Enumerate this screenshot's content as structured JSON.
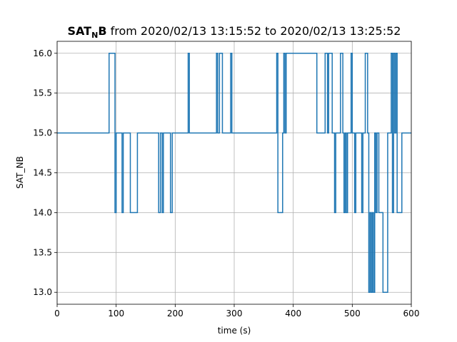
{
  "chart_data": {
    "type": "line",
    "step": "post",
    "title_main": "SAT",
    "title_subscript": "N",
    "title_bold_tail": "B",
    "title_rest": " from 2020/02/13 13:15:52 to 2020/02/13 13:25:52",
    "xlabel": "time (s)",
    "ylabel": "SAT_NB",
    "xlim": [
      0,
      600
    ],
    "ylim": [
      12.85,
      16.15
    ],
    "xticks": [
      0,
      100,
      200,
      300,
      400,
      500,
      600
    ],
    "yticks": [
      13.0,
      13.5,
      14.0,
      14.5,
      15.0,
      15.5,
      16.0
    ],
    "xtick_labels": [
      "0",
      "100",
      "200",
      "300",
      "400",
      "500",
      "600"
    ],
    "ytick_labels": [
      "13.0",
      "13.5",
      "14.0",
      "14.5",
      "15.0",
      "15.5",
      "16.0"
    ],
    "grid": true,
    "line_color": "#1f77b4",
    "series": [
      {
        "x": [
          0,
          88,
          98,
          100,
          110,
          112,
          124,
          136,
          172,
          175,
          178,
          180,
          192,
          195,
          222,
          224,
          226,
          270,
          272,
          275,
          280,
          294,
          296,
          372,
          374,
          376,
          382,
          384,
          386,
          388,
          390,
          392,
          396,
          440,
          454,
          458,
          460,
          466,
          470,
          472,
          480,
          484,
          486,
          488,
          490,
          492,
          498,
          500,
          504,
          506,
          516,
          518,
          522,
          526,
          528,
          530,
          532,
          534,
          536,
          538,
          540,
          542,
          545,
          548,
          552,
          560,
          566,
          568,
          570,
          572,
          574,
          576,
          584,
          586,
          600
        ],
        "y": [
          15,
          16,
          14,
          15,
          14,
          15,
          14,
          15,
          14,
          15,
          14,
          15,
          14,
          15,
          16,
          15,
          15,
          16,
          15,
          16,
          15,
          16,
          15,
          16,
          14,
          14,
          15,
          16,
          15,
          16,
          16,
          16,
          16,
          15,
          16,
          15,
          16,
          15,
          14,
          15,
          16,
          15,
          14,
          15,
          14,
          15,
          16,
          15,
          14,
          15,
          14,
          15,
          16,
          15,
          13,
          14,
          13,
          14,
          13,
          15,
          14,
          15,
          14,
          14,
          13,
          15,
          16,
          14,
          16,
          15,
          16,
          14,
          15,
          15,
          15
        ]
      }
    ]
  }
}
